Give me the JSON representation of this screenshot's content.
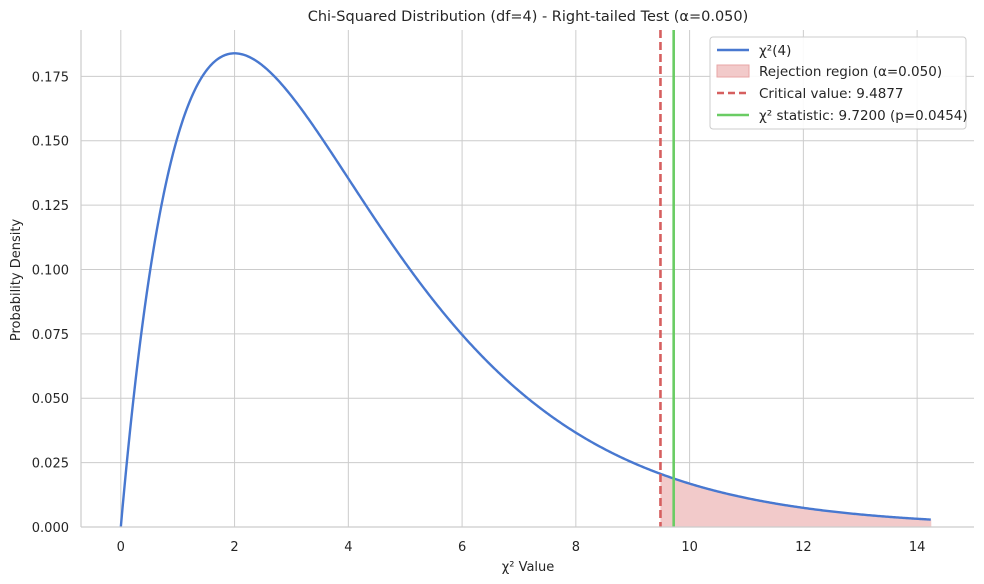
{
  "chart_data": {
    "type": "line",
    "title": "Chi-Squared Distribution (df=4) - Right-tailed Test (α=0.050)",
    "xlabel": "χ² Value",
    "ylabel": "Probability Density",
    "xlim": [
      -0.7,
      15.0
    ],
    "ylim": [
      0.0,
      0.193
    ],
    "x_ticks": [
      0,
      2,
      4,
      6,
      8,
      10,
      12,
      14
    ],
    "y_ticks": [
      0.0,
      0.025,
      0.05,
      0.075,
      0.1,
      0.125,
      0.15,
      0.175
    ],
    "x_tick_labels": [
      "0",
      "2",
      "4",
      "6",
      "8",
      "10",
      "12",
      "14"
    ],
    "y_tick_labels": [
      "0.000",
      "0.025",
      "0.050",
      "0.075",
      "0.100",
      "0.125",
      "0.150",
      "0.175"
    ],
    "grid": true,
    "legend_position": "top-right",
    "series": [
      {
        "name": "χ²(4)",
        "kind": "line",
        "color": "#4878d0",
        "x": [
          0,
          0.25,
          0.5,
          0.75,
          1.0,
          1.25,
          1.5,
          1.75,
          2.0,
          2.25,
          2.5,
          2.75,
          3.0,
          3.5,
          4.0,
          4.5,
          5.0,
          5.5,
          6.0,
          6.5,
          7.0,
          7.5,
          8.0,
          8.5,
          9.0,
          9.5,
          10.0,
          10.5,
          11.0,
          11.5,
          12.0,
          12.5,
          13.0,
          13.5,
          14.0,
          14.25
        ],
        "y": [
          0.0,
          0.0552,
          0.0974,
          0.1289,
          0.1516,
          0.1671,
          0.1771,
          0.1824,
          0.1839,
          0.1826,
          0.179,
          0.1737,
          0.1673,
          0.1519,
          0.1353,
          0.1186,
          0.1026,
          0.088,
          0.0747,
          0.063,
          0.0528,
          0.0441,
          0.0366,
          0.0303,
          0.025,
          0.0206,
          0.0168,
          0.0138,
          0.0113,
          0.0091,
          0.0074,
          0.006,
          0.0049,
          0.0039,
          0.0032,
          0.0028
        ]
      }
    ],
    "rejection_region": {
      "name": "Rejection region (α=0.050)",
      "color": "#e8a6a6",
      "x_start": 9.4877,
      "x_end": 14.25
    },
    "critical_value": {
      "name": "Critical value: 9.4877",
      "x": 9.4877,
      "color": "#d65f5f"
    },
    "test_statistic": {
      "name": "χ² statistic: 9.7200 (p=0.0454)",
      "x": 9.72,
      "color": "#6acc64"
    }
  }
}
